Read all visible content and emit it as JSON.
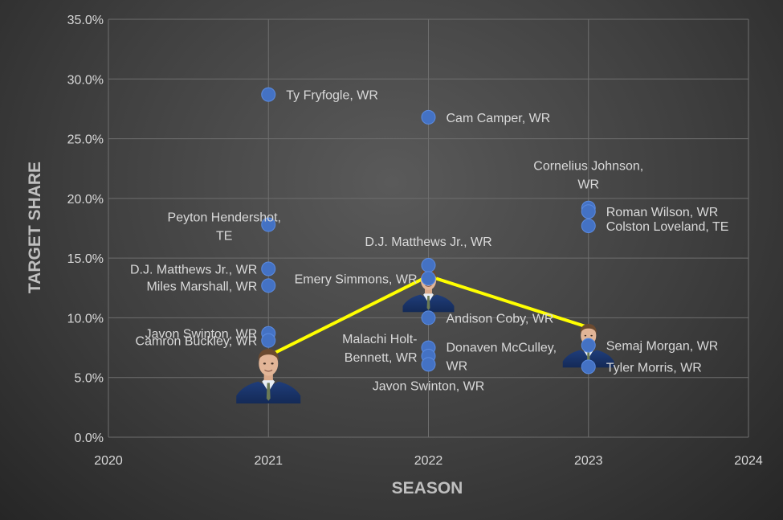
{
  "chart_data": {
    "type": "scatter",
    "title": "",
    "xlabel": "SEASON",
    "ylabel": "TARGET SHARE",
    "xlim": [
      2020,
      2024
    ],
    "ylim": [
      0,
      35
    ],
    "x_ticks": [
      "2020",
      "2021",
      "2022",
      "2023",
      "2024"
    ],
    "y_ticks": [
      "0.0%",
      "5.0%",
      "10.0%",
      "15.0%",
      "20.0%",
      "25.0%",
      "30.0%",
      "35.0%"
    ],
    "grid": "vertical and horizontal",
    "legend": "none",
    "point_color": "#4472c4",
    "line_color": "#ffff00",
    "points": [
      {
        "x": 2021,
        "y": 28.7,
        "label": [
          "Ty Fryfogle, WR"
        ],
        "side": "right"
      },
      {
        "x": 2021,
        "y": 17.8,
        "label": [
          "Peyton Hendershot,",
          "TE"
        ],
        "side": "left-above"
      },
      {
        "x": 2021,
        "y": 14.1,
        "label": [
          "D.J. Matthews Jr., WR"
        ],
        "side": "left"
      },
      {
        "x": 2021,
        "y": 12.7,
        "label": [
          "Miles Marshall, WR"
        ],
        "side": "left"
      },
      {
        "x": 2021,
        "y": 8.7,
        "label": [
          "Javon Swinton, WR"
        ],
        "side": "left"
      },
      {
        "x": 2021,
        "y": 8.1,
        "label": [
          "Camron Buckley, WR"
        ],
        "side": "left"
      },
      {
        "x": 2022,
        "y": 26.8,
        "label": [
          "Cam Camper, WR"
        ],
        "side": "right"
      },
      {
        "x": 2022,
        "y": 14.4,
        "label": [
          "D.J. Matthews Jr., WR"
        ],
        "side": "above"
      },
      {
        "x": 2022,
        "y": 13.3,
        "label": [
          "Emery Simmons, WR"
        ],
        "side": "left"
      },
      {
        "x": 2022,
        "y": 10.0,
        "label": [
          "Andison Coby, WR"
        ],
        "side": "right"
      },
      {
        "x": 2022,
        "y": 7.5,
        "label": [
          "Malachi Holt-",
          "Bennett, WR"
        ],
        "side": "left"
      },
      {
        "x": 2022,
        "y": 6.8,
        "label": [
          "Donaven McCulley,",
          "WR"
        ],
        "side": "right"
      },
      {
        "x": 2022,
        "y": 6.1,
        "label": [
          "Javon Swinton, WR"
        ],
        "side": "below"
      },
      {
        "x": 2023,
        "y": 19.2,
        "label": [
          "Cornelius Johnson,",
          "WR"
        ],
        "side": "above"
      },
      {
        "x": 2023,
        "y": 18.9,
        "label": [
          "Roman Wilson, WR"
        ],
        "side": "right"
      },
      {
        "x": 2023,
        "y": 17.7,
        "label": [
          "Colston Loveland, TE"
        ],
        "side": "right"
      },
      {
        "x": 2023,
        "y": 7.7,
        "label": [
          "Semaj Morgan, WR"
        ],
        "side": "right"
      },
      {
        "x": 2023,
        "y": 5.9,
        "label": [
          "Tyler Morris, WR"
        ],
        "side": "right"
      }
    ],
    "line_series": [
      {
        "x": 2021,
        "y": 6.8
      },
      {
        "x": 2022,
        "y": 13.5
      },
      {
        "x": 2023,
        "y": 9.2
      }
    ]
  }
}
